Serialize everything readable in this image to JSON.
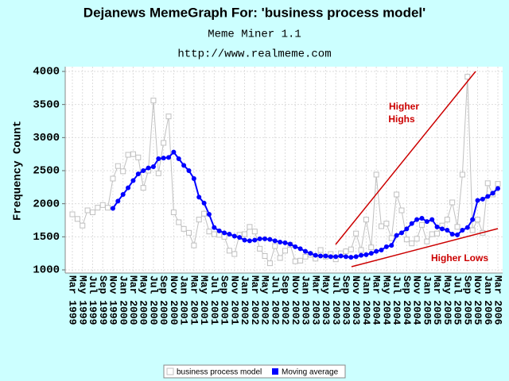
{
  "chart_data": {
    "type": "line",
    "title": "Dejanews MemeGraph For: 'business process model'",
    "subtitle": [
      "Meme Miner 1.1",
      "http://www.realmeme.com"
    ],
    "ylabel": "Frequency Count",
    "categories": [
      "Mar 1999",
      null,
      "May 1999",
      null,
      "Jul 1999",
      null,
      "Sep 1999",
      null,
      "Nov 1999",
      null,
      "Jan 2000",
      null,
      "Mar 2000",
      null,
      "May 2000",
      null,
      "Jul 2000",
      null,
      "Sep 2000",
      null,
      "Nov 2000",
      null,
      "Jan 2001",
      null,
      "Mar 2001",
      null,
      "May 2001",
      null,
      "Jul 2001",
      null,
      "Sep 2001",
      null,
      "Nov 2001",
      null,
      "Jan 2002",
      null,
      "Mar 2002",
      null,
      "May 2002",
      null,
      "Jul 2002",
      null,
      "Sep 2002",
      null,
      "Nov 2002",
      null,
      "Jan 2003",
      null,
      "Mar 2003",
      null,
      "May 2003",
      null,
      "Jul 2003",
      null,
      "Sep 2003",
      null,
      "Nov 2003",
      null,
      "Jan 2004",
      null,
      "Mar 2004",
      null,
      "May 2004",
      null,
      "Jul 2004",
      null,
      "Sep 2004",
      null,
      "Nov 2004",
      null,
      "Jan 2005",
      null,
      "Mar 2005",
      null,
      "May 2005",
      null,
      "Jul 2005",
      null,
      "Sep 2005",
      null,
      "Nov 2005",
      null,
      "Jan 2006",
      null,
      "Mar 2006"
    ],
    "series": [
      {
        "name": "business process model",
        "color": "#c0c0c0",
        "marker": "square",
        "values": [
          1840,
          1770,
          1670,
          1900,
          1870,
          1940,
          1980,
          1940,
          2380,
          2570,
          2490,
          2740,
          2750,
          2700,
          2240,
          2500,
          3560,
          2460,
          2920,
          3320,
          1870,
          1720,
          1620,
          1560,
          1370,
          1760,
          1850,
          1580,
          1540,
          1530,
          1500,
          1290,
          1240,
          1530,
          1540,
          1650,
          1580,
          1320,
          1210,
          1100,
          1360,
          1180,
          1290,
          1380,
          1130,
          1140,
          1200,
          1230,
          1170,
          1300,
          1200,
          1240,
          1160,
          1250,
          1280,
          1310,
          1550,
          1300,
          1760,
          1340,
          2440,
          1660,
          1700,
          1480,
          2140,
          1900,
          1460,
          1400,
          1470,
          1680,
          1430,
          1540,
          1550,
          1670,
          1760,
          2020,
          1650,
          2440,
          3920,
          1600,
          1760,
          1560,
          2310,
          2140,
          2300
        ]
      },
      {
        "name": "Moving average",
        "color": "#0000ff",
        "marker": "circle",
        "values": [
          null,
          null,
          null,
          null,
          null,
          null,
          null,
          null,
          1930,
          2040,
          2140,
          2240,
          2350,
          2450,
          2500,
          2540,
          2560,
          2680,
          2690,
          2700,
          2780,
          2680,
          2580,
          2500,
          2380,
          2100,
          2010,
          1840,
          1640,
          1590,
          1560,
          1540,
          1510,
          1490,
          1450,
          1440,
          1450,
          1470,
          1470,
          1460,
          1440,
          1420,
          1410,
          1390,
          1350,
          1320,
          1280,
          1250,
          1220,
          1210,
          1210,
          1200,
          1200,
          1210,
          1200,
          1190,
          1200,
          1220,
          1230,
          1250,
          1280,
          1300,
          1350,
          1370,
          1520,
          1560,
          1620,
          1700,
          1760,
          1780,
          1730,
          1760,
          1650,
          1620,
          1600,
          1540,
          1530,
          1600,
          1640,
          1760,
          2050,
          2070,
          2110,
          2160,
          2230
        ]
      }
    ],
    "ylim": [
      1000,
      4000
    ],
    "yticks": [
      1000,
      1500,
      2000,
      2500,
      3000,
      3500,
      4000
    ],
    "grid": true,
    "legend": "bottom",
    "annotations": [
      "Higher",
      "Highs",
      "Higher Lows"
    ],
    "annotation_color": "#cc0000"
  }
}
